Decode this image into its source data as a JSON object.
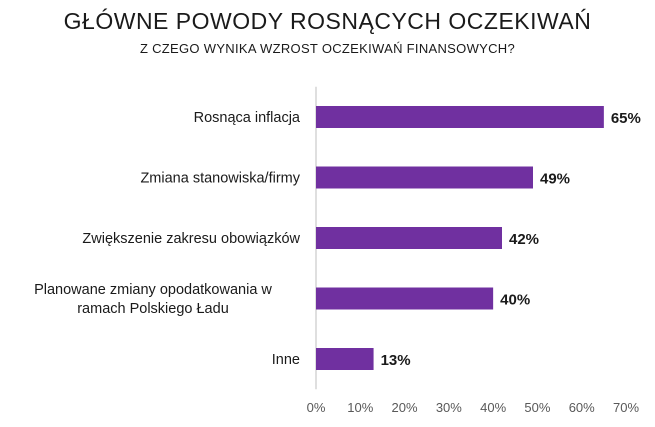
{
  "title": "GŁÓWNE POWODY ROSNĄCYCH OCZEKIWAŃ",
  "subtitle": "Z CZEGO WYNIKA WZROST OCZEKIWAŃ FINANSOWYCH?",
  "colors": {
    "bar": "#7030a0",
    "axis": "#bfbfbf",
    "text": "#1a1a1a",
    "tick": "#595959"
  },
  "chart_data": {
    "type": "bar",
    "orientation": "horizontal",
    "categories": [
      [
        "Rosnąca inflacja"
      ],
      [
        "Zmiana stanowiska/firmy"
      ],
      [
        "Zwiększenie zakresu obowiązków"
      ],
      [
        "Planowane zmiany opodatkowania w",
        "ramach Polskiego Ładu"
      ],
      [
        "Inne"
      ]
    ],
    "values": [
      65,
      49,
      42,
      40,
      13
    ],
    "value_labels": [
      "65%",
      "49%",
      "42%",
      "40%",
      "13%"
    ],
    "xlim": [
      0,
      70
    ],
    "xticks": [
      0,
      10,
      20,
      30,
      40,
      50,
      60,
      70
    ],
    "xtick_labels": [
      "0%",
      "10%",
      "20%",
      "30%",
      "40%",
      "50%",
      "60%",
      "70%"
    ],
    "grid": false,
    "legend": "none"
  }
}
